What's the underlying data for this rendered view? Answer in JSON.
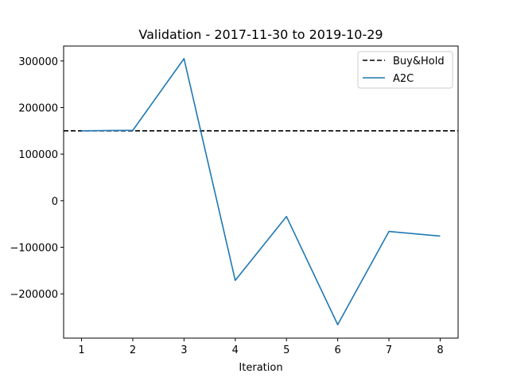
{
  "chart_data": {
    "type": "line",
    "title": "Validation - 2017-11-30 to 2019-10-29",
    "xlabel": "Iteration",
    "ylabel": "",
    "x": [
      1,
      2,
      3,
      4,
      5,
      6,
      7,
      8
    ],
    "xlim": [
      0.65,
      8.35
    ],
    "ylim": [
      -295000,
      332000
    ],
    "x_ticks": [
      1,
      2,
      3,
      4,
      5,
      6,
      7,
      8
    ],
    "x_tick_labels": [
      "1",
      "2",
      "3",
      "4",
      "5",
      "6",
      "7",
      "8"
    ],
    "y_ticks": [
      300000,
      200000,
      100000,
      0,
      -100000,
      -200000
    ],
    "y_tick_labels": [
      "300000",
      "200000",
      "100000",
      "0",
      "−100000",
      "−200000"
    ],
    "grid": false,
    "legend_position": "upper right",
    "series": [
      {
        "name": "Buy&Hold",
        "kind": "hline",
        "y": 150000,
        "color": "#000000",
        "dash": "dashed"
      },
      {
        "name": "A2C",
        "kind": "line",
        "values": [
          150000,
          151000,
          305000,
          -171000,
          -34000,
          -266000,
          -66000,
          -76000
        ],
        "color": "#1f77b4",
        "dash": "solid"
      }
    ]
  }
}
